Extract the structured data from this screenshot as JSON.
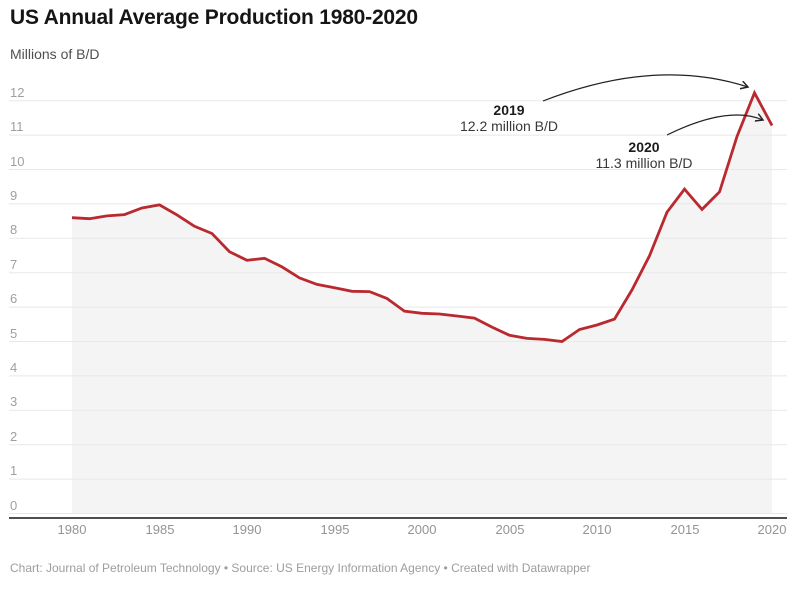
{
  "header": {
    "title": "US Annual Average Production 1980-2020",
    "subtitle": "Millions of B/D"
  },
  "chart_data": {
    "type": "line",
    "title": "US Annual Average Production 1980-2020",
    "ylabel": "Millions of B/D",
    "x": [
      1980,
      1981,
      1982,
      1983,
      1984,
      1985,
      1986,
      1987,
      1988,
      1989,
      1990,
      1991,
      1992,
      1993,
      1994,
      1995,
      1996,
      1997,
      1998,
      1999,
      2000,
      2001,
      2002,
      2003,
      2004,
      2005,
      2006,
      2007,
      2008,
      2009,
      2010,
      2011,
      2012,
      2013,
      2014,
      2015,
      2016,
      2017,
      2018,
      2019,
      2020
    ],
    "series": [
      {
        "name": "US annual average production (millions of B/D)",
        "values": [
          8.6,
          8.57,
          8.65,
          8.69,
          8.88,
          8.97,
          8.68,
          8.35,
          8.14,
          7.61,
          7.36,
          7.42,
          7.17,
          6.85,
          6.66,
          6.56,
          6.46,
          6.45,
          6.25,
          5.88,
          5.82,
          5.8,
          5.74,
          5.68,
          5.42,
          5.18,
          5.09,
          5.06,
          5.0,
          5.35,
          5.48,
          5.65,
          6.5,
          7.49,
          8.76,
          9.43,
          8.84,
          9.35,
          10.96,
          12.23,
          11.28
        ]
      }
    ],
    "ylim": [
      0,
      12
    ],
    "y_ticks": [
      0,
      1,
      2,
      3,
      4,
      5,
      6,
      7,
      8,
      9,
      10,
      11,
      12
    ],
    "x_ticks": [
      1980,
      1985,
      1990,
      1995,
      2000,
      2005,
      2010,
      2015,
      2020
    ],
    "grid": "horizontal",
    "legend": "none",
    "line_color": "#b9292f",
    "area_fill": "rgba(30,30,30,0.05)",
    "grid_color": "#e8e8e8",
    "axis_color": "#4f4f4f",
    "arrow_color": "#222222",
    "annotations": [
      {
        "label": "2019",
        "value_text": "12.2 million B/D",
        "year": 2019,
        "value": 12.2
      },
      {
        "label": "2020",
        "value_text": "11.3 million B/D",
        "year": 2020,
        "value": 11.3
      }
    ]
  },
  "footer": {
    "text": "Chart: Journal of Petroleum Technology • Source: US Energy Information Agency • Created with Datawrapper"
  }
}
